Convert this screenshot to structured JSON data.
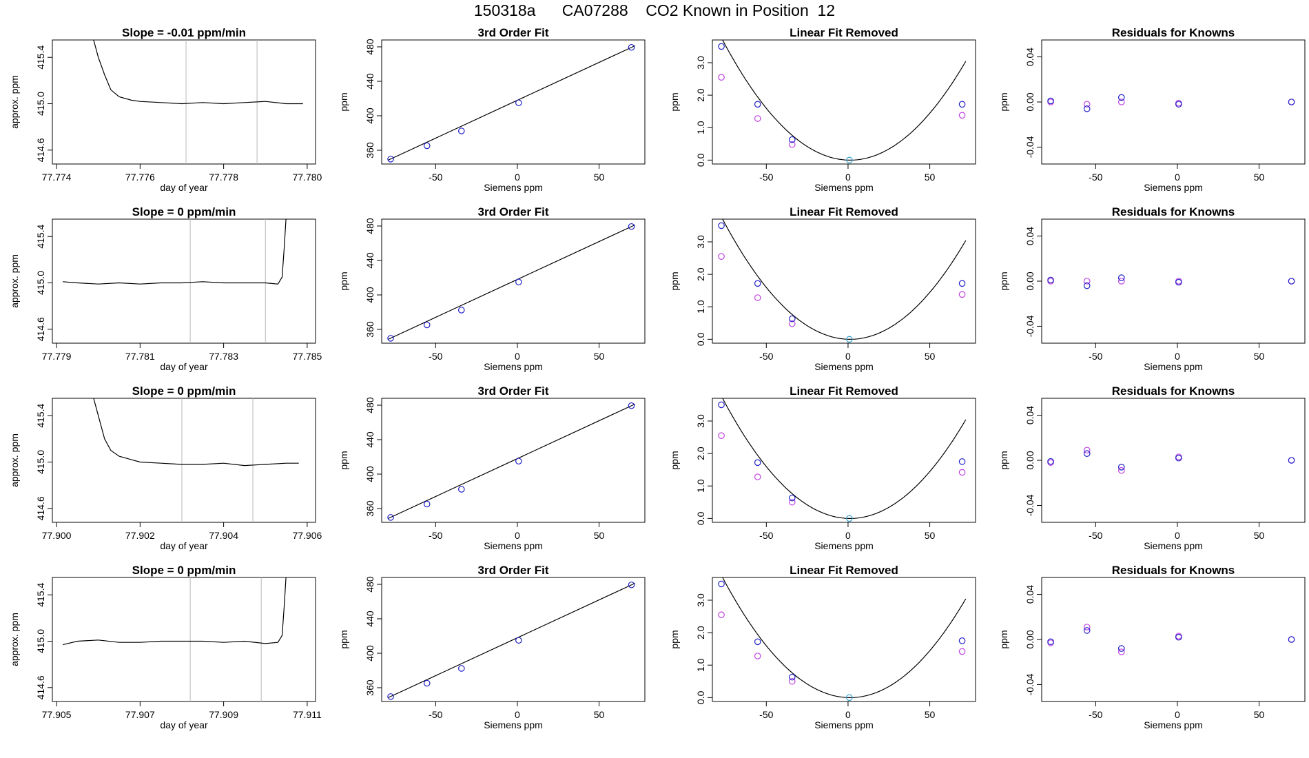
{
  "figure": {
    "title": "150318a      CA07288    CO2 Known in Position  12"
  },
  "chart_data": [
    {
      "type": "line",
      "panel": "r1-ts",
      "title": "Slope =  -0.01  ppm/min",
      "xlabel": "day of year",
      "ylabel": "approx. ppm",
      "xlim": [
        77.7739,
        77.7802
      ],
      "ylim": [
        414.48,
        415.55
      ],
      "xticks": [
        77.774,
        77.776,
        77.778,
        77.78
      ],
      "xticklabels": [
        "77.774",
        "77.776",
        "77.778",
        "77.780"
      ],
      "yticks": [
        414.6,
        415.0,
        415.4
      ],
      "yticklabels": [
        "414.6",
        "415.0",
        "415.4"
      ],
      "vlines": [
        77.7771,
        77.7788
      ],
      "series": [
        {
          "x": [
            77.77485,
            77.775,
            77.77515,
            77.7753,
            77.7755,
            77.7758,
            77.776,
            77.7765,
            77.777,
            77.7775,
            77.778,
            77.7785,
            77.779,
            77.7795,
            77.7799
          ],
          "y": [
            415.6,
            415.4,
            415.25,
            415.12,
            415.06,
            415.03,
            415.02,
            415.01,
            415.0,
            415.01,
            415.0,
            415.01,
            415.02,
            415.0,
            415.0
          ]
        }
      ]
    },
    {
      "type": "scatter",
      "panel": "r1-fit",
      "title": "3rd Order Fit",
      "xlabel": "Siemens ppm",
      "ylabel": "ppm",
      "xlim": [
        -83,
        78
      ],
      "ylim": [
        344,
        488
      ],
      "xticks": [
        -50,
        0,
        50
      ],
      "xticklabels": [
        "-50",
        "0",
        "50"
      ],
      "yticks": [
        360,
        400,
        440,
        480
      ],
      "yticklabels": [
        "360",
        "400",
        "440",
        "480"
      ],
      "points": {
        "x": [
          -77.5,
          -55.3,
          -34.2,
          0.8,
          69.8
        ],
        "y": [
          349.7,
          365.2,
          382.4,
          415.0,
          479.4
        ]
      },
      "fit_line": {
        "x": [
          -79,
          72
        ],
        "y": [
          348.5,
          481.3
        ]
      }
    },
    {
      "type": "scatter",
      "panel": "r1-lin",
      "title": "Linear Fit Removed",
      "xlabel": "Siemens ppm",
      "ylabel": "ppm",
      "xlim": [
        -83,
        78
      ],
      "ylim": [
        -0.12,
        3.7
      ],
      "xticks": [
        -50,
        0,
        50
      ],
      "xticklabels": [
        "-50",
        "0",
        "50"
      ],
      "yticks": [
        0.0,
        1.0,
        2.0,
        3.0
      ],
      "yticklabels": [
        "0.0",
        "1.0",
        "2.0",
        "3.0"
      ],
      "points": {
        "x": [
          -77.5,
          -55.3,
          -34.2,
          0.8,
          69.8
        ],
        "y": [
          3.5,
          1.72,
          0.63,
          0.0,
          1.72
        ]
      },
      "points_alt": {
        "x": [
          -77.5,
          -55.3,
          -34.2,
          69.8
        ],
        "y": [
          2.55,
          1.28,
          0.48,
          1.38
        ]
      },
      "curve": {
        "a": 0.000608,
        "b": -0.00153,
        "c": 0.0
      }
    },
    {
      "type": "scatter",
      "panel": "r1-res",
      "title": "Residuals for Knowns",
      "xlabel": "Siemens ppm",
      "ylabel": "ppm",
      "xlim": [
        -83,
        78
      ],
      "ylim": [
        -0.055,
        0.055
      ],
      "xticks": [
        -50,
        0,
        50
      ],
      "xticklabels": [
        "-50",
        "0",
        "50"
      ],
      "yticks": [
        -0.04,
        0.0,
        0.04
      ],
      "yticklabels": [
        "-0.04",
        "0.00",
        "0.04"
      ],
      "points": {
        "x": [
          -77.5,
          -55.3,
          -34.2,
          0.8,
          69.8
        ],
        "y": [
          0.001,
          -0.006,
          0.004,
          -0.002,
          0.0
        ]
      },
      "points_alt": {
        "x": [
          -77.5,
          -55.3,
          -34.2,
          0.8,
          69.8
        ],
        "y": [
          0.0,
          -0.002,
          0.0,
          -0.001,
          0.0
        ]
      }
    },
    {
      "type": "line",
      "panel": "r2-ts",
      "title": "Slope =  0  ppm/min",
      "xlabel": "day of year",
      "ylabel": "approx. ppm",
      "xlim": [
        77.7789,
        77.7852
      ],
      "ylim": [
        414.48,
        415.55
      ],
      "xticks": [
        77.779,
        77.781,
        77.783,
        77.785
      ],
      "xticklabels": [
        "77.779",
        "77.781",
        "77.783",
        "77.785"
      ],
      "yticks": [
        414.6,
        415.0,
        415.4
      ],
      "yticklabels": [
        "414.6",
        "415.0",
        "415.4"
      ],
      "vlines": [
        77.7822,
        77.784
      ],
      "series": [
        {
          "x": [
            77.77915,
            77.7795,
            77.78,
            77.7805,
            77.781,
            77.7815,
            77.782,
            77.7825,
            77.783,
            77.7835,
            77.784,
            77.7843,
            77.7844,
            77.78445,
            77.7845
          ],
          "y": [
            415.01,
            415.0,
            414.99,
            415.0,
            414.99,
            415.0,
            415.0,
            415.01,
            415.0,
            415.0,
            415.0,
            414.99,
            415.05,
            415.3,
            415.6
          ]
        }
      ]
    },
    {
      "type": "scatter",
      "panel": "r2-fit",
      "title": "3rd Order Fit",
      "xlabel": "Siemens ppm",
      "ylabel": "ppm",
      "xlim": [
        -83,
        78
      ],
      "ylim": [
        344,
        488
      ],
      "xticks": [
        -50,
        0,
        50
      ],
      "xticklabels": [
        "-50",
        "0",
        "50"
      ],
      "yticks": [
        360,
        400,
        440,
        480
      ],
      "yticklabels": [
        "360",
        "400",
        "440",
        "480"
      ],
      "points": {
        "x": [
          -77.5,
          -55.3,
          -34.2,
          0.8,
          69.8
        ],
        "y": [
          349.7,
          365.2,
          382.4,
          415.0,
          479.4
        ]
      },
      "fit_line": {
        "x": [
          -79,
          72
        ],
        "y": [
          348.5,
          481.3
        ]
      }
    },
    {
      "type": "scatter",
      "panel": "r2-lin",
      "title": "Linear Fit Removed",
      "xlabel": "Siemens ppm",
      "ylabel": "ppm",
      "xlim": [
        -83,
        78
      ],
      "ylim": [
        -0.12,
        3.7
      ],
      "xticks": [
        -50,
        0,
        50
      ],
      "xticklabels": [
        "-50",
        "0",
        "50"
      ],
      "yticks": [
        0.0,
        1.0,
        2.0,
        3.0
      ],
      "yticklabels": [
        "0.0",
        "1.0",
        "2.0",
        "3.0"
      ],
      "points": {
        "x": [
          -77.5,
          -55.3,
          -34.2,
          0.8,
          69.8
        ],
        "y": [
          3.5,
          1.72,
          0.63,
          0.0,
          1.72
        ]
      },
      "points_alt": {
        "x": [
          -77.5,
          -55.3,
          -34.2,
          69.8
        ],
        "y": [
          2.55,
          1.28,
          0.48,
          1.38
        ]
      },
      "curve": {
        "a": 0.000608,
        "b": -0.00153,
        "c": 0.0
      }
    },
    {
      "type": "scatter",
      "panel": "r2-res",
      "title": "Residuals for Knowns",
      "xlabel": "Siemens ppm",
      "ylabel": "ppm",
      "xlim": [
        -83,
        78
      ],
      "ylim": [
        -0.055,
        0.055
      ],
      "xticks": [
        -50,
        0,
        50
      ],
      "xticklabels": [
        "-50",
        "0",
        "50"
      ],
      "yticks": [
        -0.04,
        0.0,
        0.04
      ],
      "yticklabels": [
        "-0.04",
        "0.00",
        "0.04"
      ],
      "points": {
        "x": [
          -77.5,
          -55.3,
          -34.2,
          0.8,
          69.8
        ],
        "y": [
          0.001,
          -0.004,
          0.003,
          -0.001,
          0.0
        ]
      },
      "points_alt": {
        "x": [
          -77.5,
          -55.3,
          -34.2,
          0.8,
          69.8
        ],
        "y": [
          0.0,
          0.0,
          0.0,
          0.0,
          0.0
        ]
      }
    },
    {
      "type": "line",
      "panel": "r3-ts",
      "title": "Slope =  0  ppm/min",
      "xlabel": "day of year",
      "ylabel": "approx. ppm",
      "xlim": [
        77.8999,
        77.9062
      ],
      "ylim": [
        414.48,
        415.55
      ],
      "xticks": [
        77.9,
        77.902,
        77.904,
        77.906
      ],
      "xticklabels": [
        "77.900",
        "77.902",
        "77.904",
        "77.906"
      ],
      "yticks": [
        414.6,
        415.0,
        415.4
      ],
      "yticklabels": [
        "414.6",
        "415.0",
        "415.4"
      ],
      "vlines": [
        77.903,
        77.9047
      ],
      "series": [
        {
          "x": [
            77.90085,
            77.901,
            77.90115,
            77.9013,
            77.9015,
            77.9018,
            77.902,
            77.9025,
            77.903,
            77.9035,
            77.904,
            77.9045,
            77.905,
            77.9055,
            77.9058
          ],
          "y": [
            415.6,
            415.4,
            415.2,
            415.1,
            415.05,
            415.02,
            415.0,
            414.99,
            414.98,
            414.98,
            414.99,
            414.97,
            414.98,
            414.99,
            414.99
          ]
        }
      ]
    },
    {
      "type": "scatter",
      "panel": "r3-fit",
      "title": "3rd Order Fit",
      "xlabel": "Siemens ppm",
      "ylabel": "ppm",
      "xlim": [
        -83,
        78
      ],
      "ylim": [
        344,
        488
      ],
      "xticks": [
        -50,
        0,
        50
      ],
      "xticklabels": [
        "-50",
        "0",
        "50"
      ],
      "yticks": [
        360,
        400,
        440,
        480
      ],
      "yticklabels": [
        "360",
        "400",
        "440",
        "480"
      ],
      "points": {
        "x": [
          -77.5,
          -55.3,
          -34.2,
          0.8,
          69.8
        ],
        "y": [
          349.7,
          365.2,
          382.4,
          415.0,
          479.4
        ]
      },
      "fit_line": {
        "x": [
          -79,
          72
        ],
        "y": [
          348.5,
          481.3
        ]
      }
    },
    {
      "type": "scatter",
      "panel": "r3-lin",
      "title": "Linear Fit Removed",
      "xlabel": "Siemens ppm",
      "ylabel": "ppm",
      "xlim": [
        -83,
        78
      ],
      "ylim": [
        -0.12,
        3.7
      ],
      "xticks": [
        -50,
        0,
        50
      ],
      "xticklabels": [
        "-50",
        "0",
        "50"
      ],
      "yticks": [
        0.0,
        1.0,
        2.0,
        3.0
      ],
      "yticklabels": [
        "0.0",
        "1.0",
        "2.0",
        "3.0"
      ],
      "points": {
        "x": [
          -77.5,
          -55.3,
          -34.2,
          0.8,
          69.8
        ],
        "y": [
          3.5,
          1.72,
          0.63,
          0.0,
          1.75
        ]
      },
      "points_alt": {
        "x": [
          -77.5,
          -55.3,
          -34.2,
          69.8
        ],
        "y": [
          2.55,
          1.28,
          0.5,
          1.42
        ]
      },
      "curve": {
        "a": 0.000608,
        "b": -0.00153,
        "c": 0.0
      }
    },
    {
      "type": "scatter",
      "panel": "r3-res",
      "title": "Residuals for Knowns",
      "xlabel": "Siemens ppm",
      "ylabel": "ppm",
      "xlim": [
        -83,
        78
      ],
      "ylim": [
        -0.055,
        0.055
      ],
      "xticks": [
        -50,
        0,
        50
      ],
      "xticklabels": [
        "-50",
        "0",
        "50"
      ],
      "yticks": [
        -0.04,
        0.0,
        0.04
      ],
      "yticklabels": [
        "-0.04",
        "0.00",
        "0.04"
      ],
      "points": {
        "x": [
          -77.5,
          -55.3,
          -34.2,
          0.8,
          69.8
        ],
        "y": [
          -0.001,
          0.006,
          -0.006,
          0.002,
          0.0
        ]
      },
      "points_alt": {
        "x": [
          -77.5,
          -55.3,
          -34.2,
          0.8,
          69.8
        ],
        "y": [
          -0.002,
          0.009,
          -0.009,
          0.003,
          0.0
        ]
      }
    },
    {
      "type": "line",
      "panel": "r4-ts",
      "title": "Slope =  0  ppm/min",
      "xlabel": "day of year",
      "ylabel": "approx. ppm",
      "xlim": [
        77.9049,
        77.9112
      ],
      "ylim": [
        414.48,
        415.55
      ],
      "xticks": [
        77.905,
        77.907,
        77.909,
        77.911
      ],
      "xticklabels": [
        "77.905",
        "77.907",
        "77.909",
        "77.911"
      ],
      "yticks": [
        414.6,
        415.0,
        415.4
      ],
      "yticklabels": [
        "414.6",
        "415.0",
        "415.4"
      ],
      "vlines": [
        77.9082,
        77.9099
      ],
      "series": [
        {
          "x": [
            77.90515,
            77.9055,
            77.906,
            77.9065,
            77.907,
            77.9075,
            77.908,
            77.9085,
            77.909,
            77.9095,
            77.91,
            77.9103,
            77.9104,
            77.91045,
            77.9105
          ],
          "y": [
            414.97,
            415.0,
            415.01,
            414.99,
            414.99,
            415.0,
            415.0,
            415.0,
            414.99,
            415.0,
            414.98,
            414.99,
            415.05,
            415.3,
            415.6
          ]
        }
      ]
    },
    {
      "type": "scatter",
      "panel": "r4-fit",
      "title": "3rd Order Fit",
      "xlabel": "Siemens ppm",
      "ylabel": "ppm",
      "xlim": [
        -83,
        78
      ],
      "ylim": [
        344,
        488
      ],
      "xticks": [
        -50,
        0,
        50
      ],
      "xticklabels": [
        "-50",
        "0",
        "50"
      ],
      "yticks": [
        360,
        400,
        440,
        480
      ],
      "yticklabels": [
        "360",
        "400",
        "440",
        "480"
      ],
      "points": {
        "x": [
          -77.5,
          -55.3,
          -34.2,
          0.8,
          69.8
        ],
        "y": [
          349.7,
          365.2,
          382.4,
          415.0,
          479.4
        ]
      },
      "fit_line": {
        "x": [
          -79,
          72
        ],
        "y": [
          348.5,
          481.3
        ]
      }
    },
    {
      "type": "scatter",
      "panel": "r4-lin",
      "title": "Linear Fit Removed",
      "xlabel": "Siemens ppm",
      "ylabel": "ppm",
      "xlim": [
        -83,
        78
      ],
      "ylim": [
        -0.12,
        3.7
      ],
      "xticks": [
        -50,
        0,
        50
      ],
      "xticklabels": [
        "-50",
        "0",
        "50"
      ],
      "yticks": [
        0.0,
        1.0,
        2.0,
        3.0
      ],
      "yticklabels": [
        "0.0",
        "1.0",
        "2.0",
        "3.0"
      ],
      "points": {
        "x": [
          -77.5,
          -55.3,
          -34.2,
          0.8,
          69.8
        ],
        "y": [
          3.5,
          1.72,
          0.63,
          0.0,
          1.75
        ]
      },
      "points_alt": {
        "x": [
          -77.5,
          -55.3,
          -34.2,
          69.8
        ],
        "y": [
          2.55,
          1.28,
          0.5,
          1.42
        ]
      },
      "curve": {
        "a": 0.000608,
        "b": -0.00153,
        "c": 0.0
      }
    },
    {
      "type": "scatter",
      "panel": "r4-res",
      "title": "Residuals for Knowns",
      "xlabel": "Siemens ppm",
      "ylabel": "ppm",
      "xlim": [
        -83,
        78
      ],
      "ylim": [
        -0.055,
        0.055
      ],
      "xticks": [
        -50,
        0,
        50
      ],
      "xticklabels": [
        "-50",
        "0",
        "50"
      ],
      "yticks": [
        -0.04,
        0.0,
        0.04
      ],
      "yticklabels": [
        "-0.04",
        "0.00",
        "0.04"
      ],
      "points": {
        "x": [
          -77.5,
          -55.3,
          -34.2,
          0.8,
          69.8
        ],
        "y": [
          -0.002,
          0.008,
          -0.008,
          0.002,
          0.0
        ]
      },
      "points_alt": {
        "x": [
          -77.5,
          -55.3,
          -34.2,
          0.8,
          69.8
        ],
        "y": [
          -0.003,
          0.011,
          -0.011,
          0.003,
          0.0
        ]
      }
    }
  ],
  "colors": {
    "axis": "#000000",
    "line": "#000000",
    "vline": "#b8b8b8",
    "point_primary": "#2020c8",
    "point_alt": "#c040e0",
    "point_reference": "#30a0d0"
  }
}
